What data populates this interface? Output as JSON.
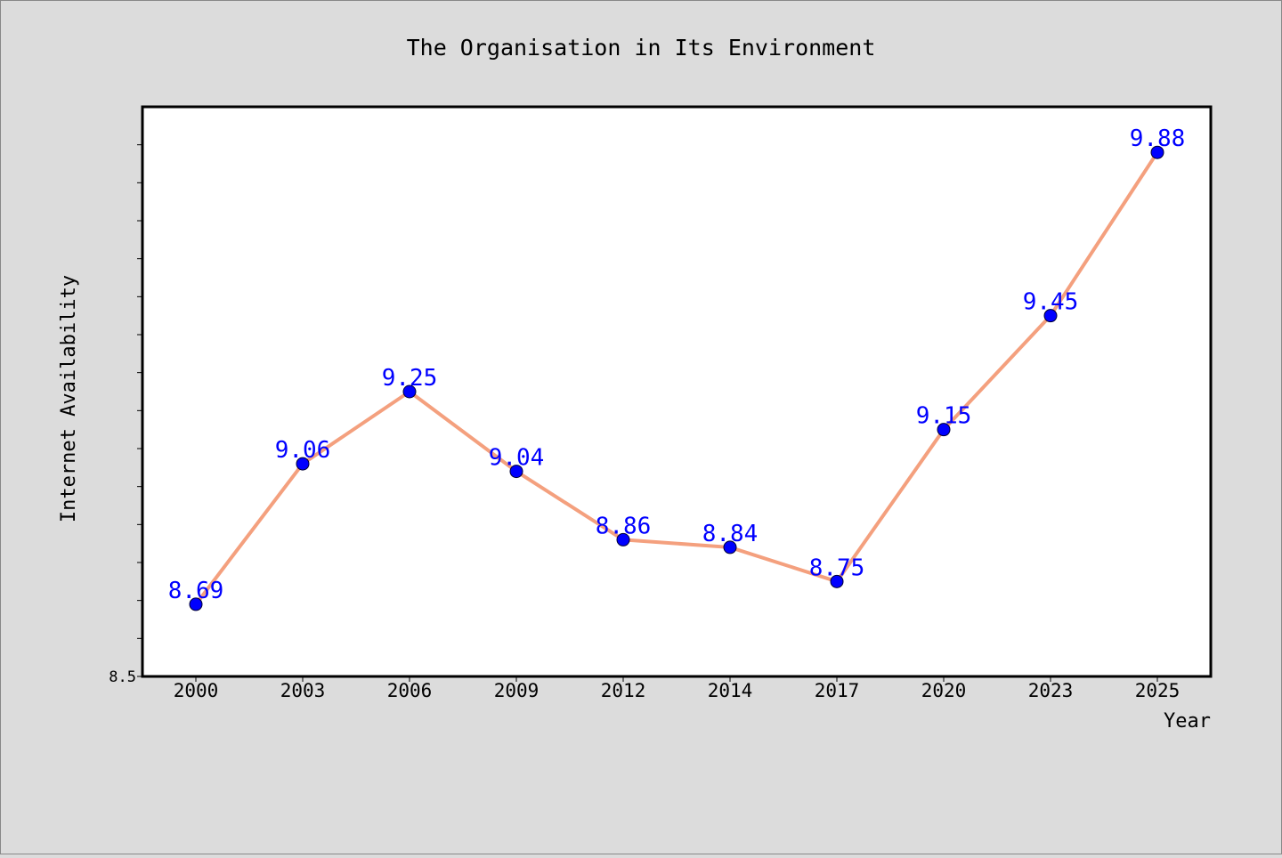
{
  "chart_data": {
    "type": "line",
    "title": "The Organisation in Its Environment",
    "xlabel": "Year",
    "ylabel": "Internet Availability",
    "categories": [
      "2000",
      "2003",
      "2006",
      "2009",
      "2012",
      "2014",
      "2017",
      "2020",
      "2023",
      "2025"
    ],
    "series": [
      {
        "values": [
          8.69,
          9.06,
          9.25,
          9.04,
          8.86,
          8.84,
          8.75,
          9.15,
          9.45,
          9.88
        ],
        "data_labels": [
          "8.69",
          "9.06",
          "9.25",
          "9.04",
          "8.86",
          "8.84",
          "8.75",
          "9.15",
          "9.45",
          "9.88"
        ]
      }
    ],
    "ylim": [
      8.5,
      10.0
    ],
    "y_tick_labels": [
      "8.5"
    ],
    "grid": false,
    "legend": "none",
    "colors": {
      "line": "#f4a07e",
      "marker": "#0000ff",
      "data_label": "#0000ff",
      "plot_background": "#ffffff",
      "figure_background": "#dcdcdc"
    }
  }
}
